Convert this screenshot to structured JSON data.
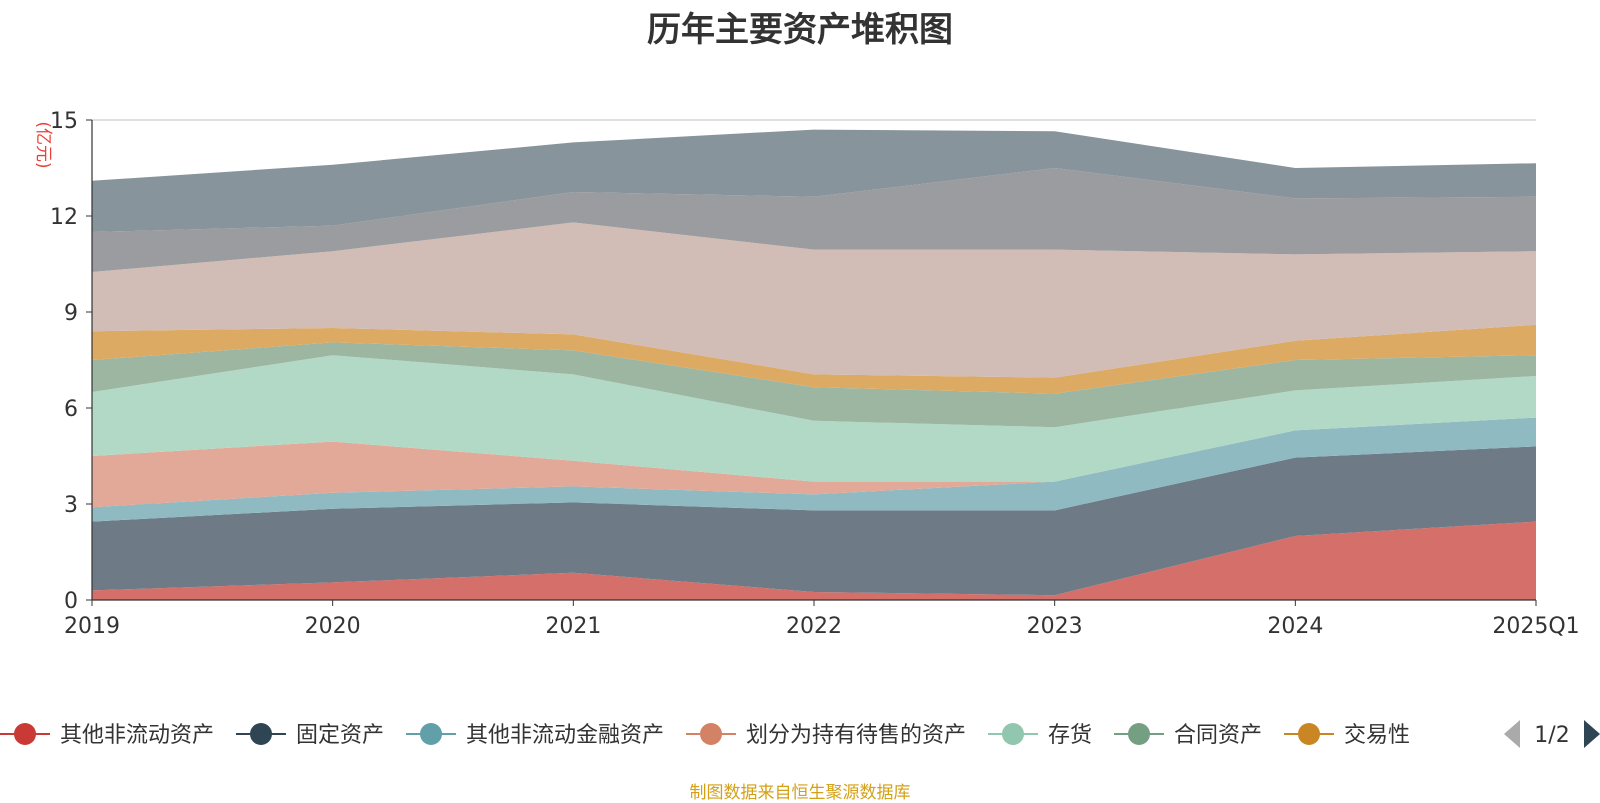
{
  "chart_data": {
    "type": "area",
    "stacked": true,
    "title": "历年主要资产堆积图",
    "ylabel": "(亿元)",
    "xlabel": "",
    "categories": [
      "2019",
      "2020",
      "2021",
      "2022",
      "2023",
      "2024",
      "2025Q1"
    ],
    "ylim": [
      0,
      15
    ],
    "yticks": [
      0,
      3,
      6,
      9,
      12,
      15
    ],
    "grid": true,
    "series": [
      {
        "name": "其他非流动资产",
        "color": "#d46f6a",
        "values": [
          0.3,
          0.55,
          0.85,
          0.25,
          0.15,
          2.0,
          2.45
        ]
      },
      {
        "name": "固定资产",
        "color": "#6e7b86",
        "values": [
          2.15,
          2.3,
          2.2,
          2.55,
          2.65,
          2.45,
          2.35
        ]
      },
      {
        "name": "其他非流动金融资产",
        "color": "#8fbac2",
        "values": [
          0.45,
          0.5,
          0.5,
          0.5,
          0.9,
          0.85,
          0.9
        ]
      },
      {
        "name": "划分为持有待售的资产",
        "color": "#e2a898",
        "values": [
          1.6,
          1.6,
          0.8,
          0.4,
          0.0,
          0.0,
          0.0
        ]
      },
      {
        "name": "存货",
        "color": "#b2d9c6",
        "values": [
          2.0,
          2.7,
          2.7,
          1.9,
          1.7,
          1.25,
          1.3
        ]
      },
      {
        "name": "合同资产",
        "color": "#9cb6a2",
        "values": [
          1.0,
          0.4,
          0.75,
          1.05,
          1.05,
          0.95,
          0.65
        ]
      },
      {
        "name": "交易性",
        "color": "#dcaa62",
        "values": [
          0.9,
          0.45,
          0.5,
          0.4,
          0.5,
          0.6,
          0.95
        ]
      },
      {
        "name": "",
        "color": "#d1bcb6",
        "values": [
          1.85,
          2.4,
          3.5,
          3.9,
          4.0,
          2.7,
          2.3
        ]
      },
      {
        "name": "",
        "color": "#9b9c9f",
        "values": [
          1.25,
          0.8,
          0.95,
          1.65,
          2.55,
          1.75,
          1.7
        ]
      },
      {
        "name": "",
        "color": "#87949b",
        "values": [
          1.6,
          1.9,
          1.55,
          2.1,
          1.15,
          0.95,
          1.05
        ]
      }
    ],
    "legend": {
      "position": "bottom",
      "page_indicator": "1/2",
      "markers": [
        "#c93a36",
        "#2f4554",
        "#61a0a8",
        "#d48265",
        "#91c7ae",
        "#749f83",
        "#ca8622"
      ],
      "icons": [
        "prev-page-icon",
        "next-page-icon"
      ]
    }
  },
  "footer": {
    "source": "制图数据来自恒生聚源数据库"
  }
}
